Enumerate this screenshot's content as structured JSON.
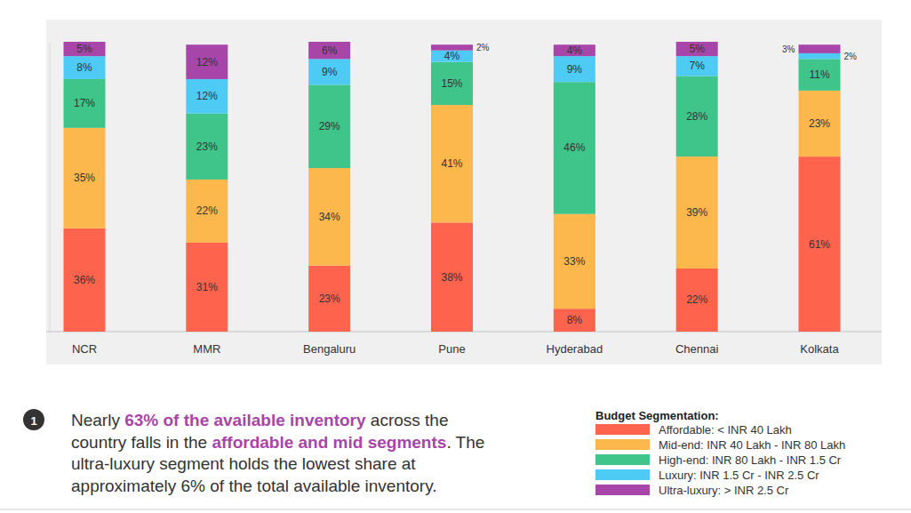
{
  "chart_data": {
    "type": "bar",
    "stacked": true,
    "data_labels": true,
    "tick_labels": "x",
    "legend": "bottom-right",
    "legend_title": "Budget Segmentation:",
    "categories": [
      "NCR",
      "MMR",
      "Bengaluru",
      "Pune",
      "Hyderabad",
      "Chennai",
      "Kolkata"
    ],
    "ylim": [
      0,
      101
    ],
    "series": [
      {
        "name": "Affordable: < INR 40 Lakh",
        "color": "#fe634e",
        "values": [
          36,
          31,
          23,
          38,
          8,
          22,
          61
        ],
        "value_labels": [
          "36%",
          "31%",
          "23%",
          "38%",
          "8%",
          "22%",
          "61%"
        ]
      },
      {
        "name": "Mid-end: INR 40 Lakh - INR 80 Lakh",
        "color": "#fdb84d",
        "values": [
          35,
          22,
          34,
          41,
          33,
          39,
          23
        ],
        "value_labels": [
          "35%",
          "22%",
          "34%",
          "41%",
          "33%",
          "39%",
          "23%"
        ]
      },
      {
        "name": "High-end: INR 80 Lakh - INR 1.5 Cr",
        "color": "#3fc589",
        "values": [
          17,
          23,
          29,
          15,
          46,
          28,
          11
        ],
        "value_labels": [
          "17%",
          "23%",
          "29%",
          "15%",
          "46%",
          "28%",
          "11%"
        ]
      },
      {
        "name": "Luxury: INR 1.5 Cr - INR 2.5 Cr",
        "color": "#4dcbf5",
        "values": [
          8,
          12,
          9,
          4,
          9,
          7,
          2
        ],
        "value_labels": [
          "8%",
          "12%",
          "9%",
          "4%",
          "9%",
          "7%",
          "2%"
        ]
      },
      {
        "name": "Ultra-luxury: > INR 2.5 Cr",
        "color": "#a845a8",
        "values": [
          5,
          12,
          6,
          2,
          4,
          5,
          3
        ],
        "value_labels": [
          "5%",
          "12%",
          "6%",
          "2%",
          "4%",
          "5%",
          "3%"
        ]
      }
    ]
  },
  "note": {
    "number": "1",
    "lines": [
      {
        "runs": [
          {
            "text": "Nearly ",
            "bold": false
          },
          {
            "text": "63% of the available inventory",
            "bold": true
          },
          {
            "text": " across the",
            "bold": false
          }
        ]
      },
      {
        "runs": [
          {
            "text": "country falls in the ",
            "bold": false
          },
          {
            "text": "affordable and mid segments",
            "bold": true
          },
          {
            "text": ". The",
            "bold": false
          }
        ]
      },
      {
        "runs": [
          {
            "text": "ultra-luxury segment holds the lowest share at",
            "bold": false
          }
        ]
      },
      {
        "runs": [
          {
            "text": "approximately 6% of the total available inventory.",
            "bold": false
          }
        ]
      }
    ]
  }
}
